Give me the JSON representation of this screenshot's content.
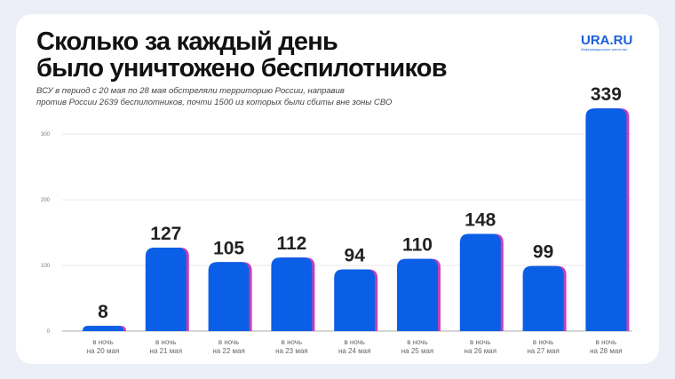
{
  "header": {
    "title_line1": "Сколько за каждый день",
    "title_line2": "было уничтожено беспилотников",
    "subtitle_line1": "ВСУ в период с 20 мая по 28 мая обстреляли территорию России, направив",
    "subtitle_line2": "против России 2639  беспилотников, почти 1500 из которых были сбиты вне зоны СВО",
    "logo": "URA.RU",
    "logo_tagline": "Информационное агентство"
  },
  "colors": {
    "bar": "#0b5fe6",
    "shadow": "#c63fb8",
    "grid": "#e3e3e3",
    "axis": "#bdbdbd"
  },
  "chart_data": {
    "type": "bar",
    "title": "Сколько за каждый день было уничтожено беспилотников",
    "categories": [
      [
        "в ночь",
        "на 20 мая"
      ],
      [
        "в ночь",
        "на 21 мая"
      ],
      [
        "в ночь",
        "на 22 мая"
      ],
      [
        "в ночь",
        "на 23 мая"
      ],
      [
        "в ночь",
        "на 24 мая"
      ],
      [
        "в ночь",
        "на 25 мая"
      ],
      [
        "в ночь",
        "на 26 мая"
      ],
      [
        "в ночь",
        "на 27 мая"
      ],
      [
        "в ночь",
        "на 28 мая"
      ]
    ],
    "values": [
      8,
      127,
      105,
      112,
      94,
      110,
      148,
      99,
      339
    ],
    "yticks": [
      0,
      100,
      200,
      300
    ],
    "ylim": [
      0,
      340
    ],
    "grid": true,
    "xlabel": "",
    "ylabel": ""
  }
}
